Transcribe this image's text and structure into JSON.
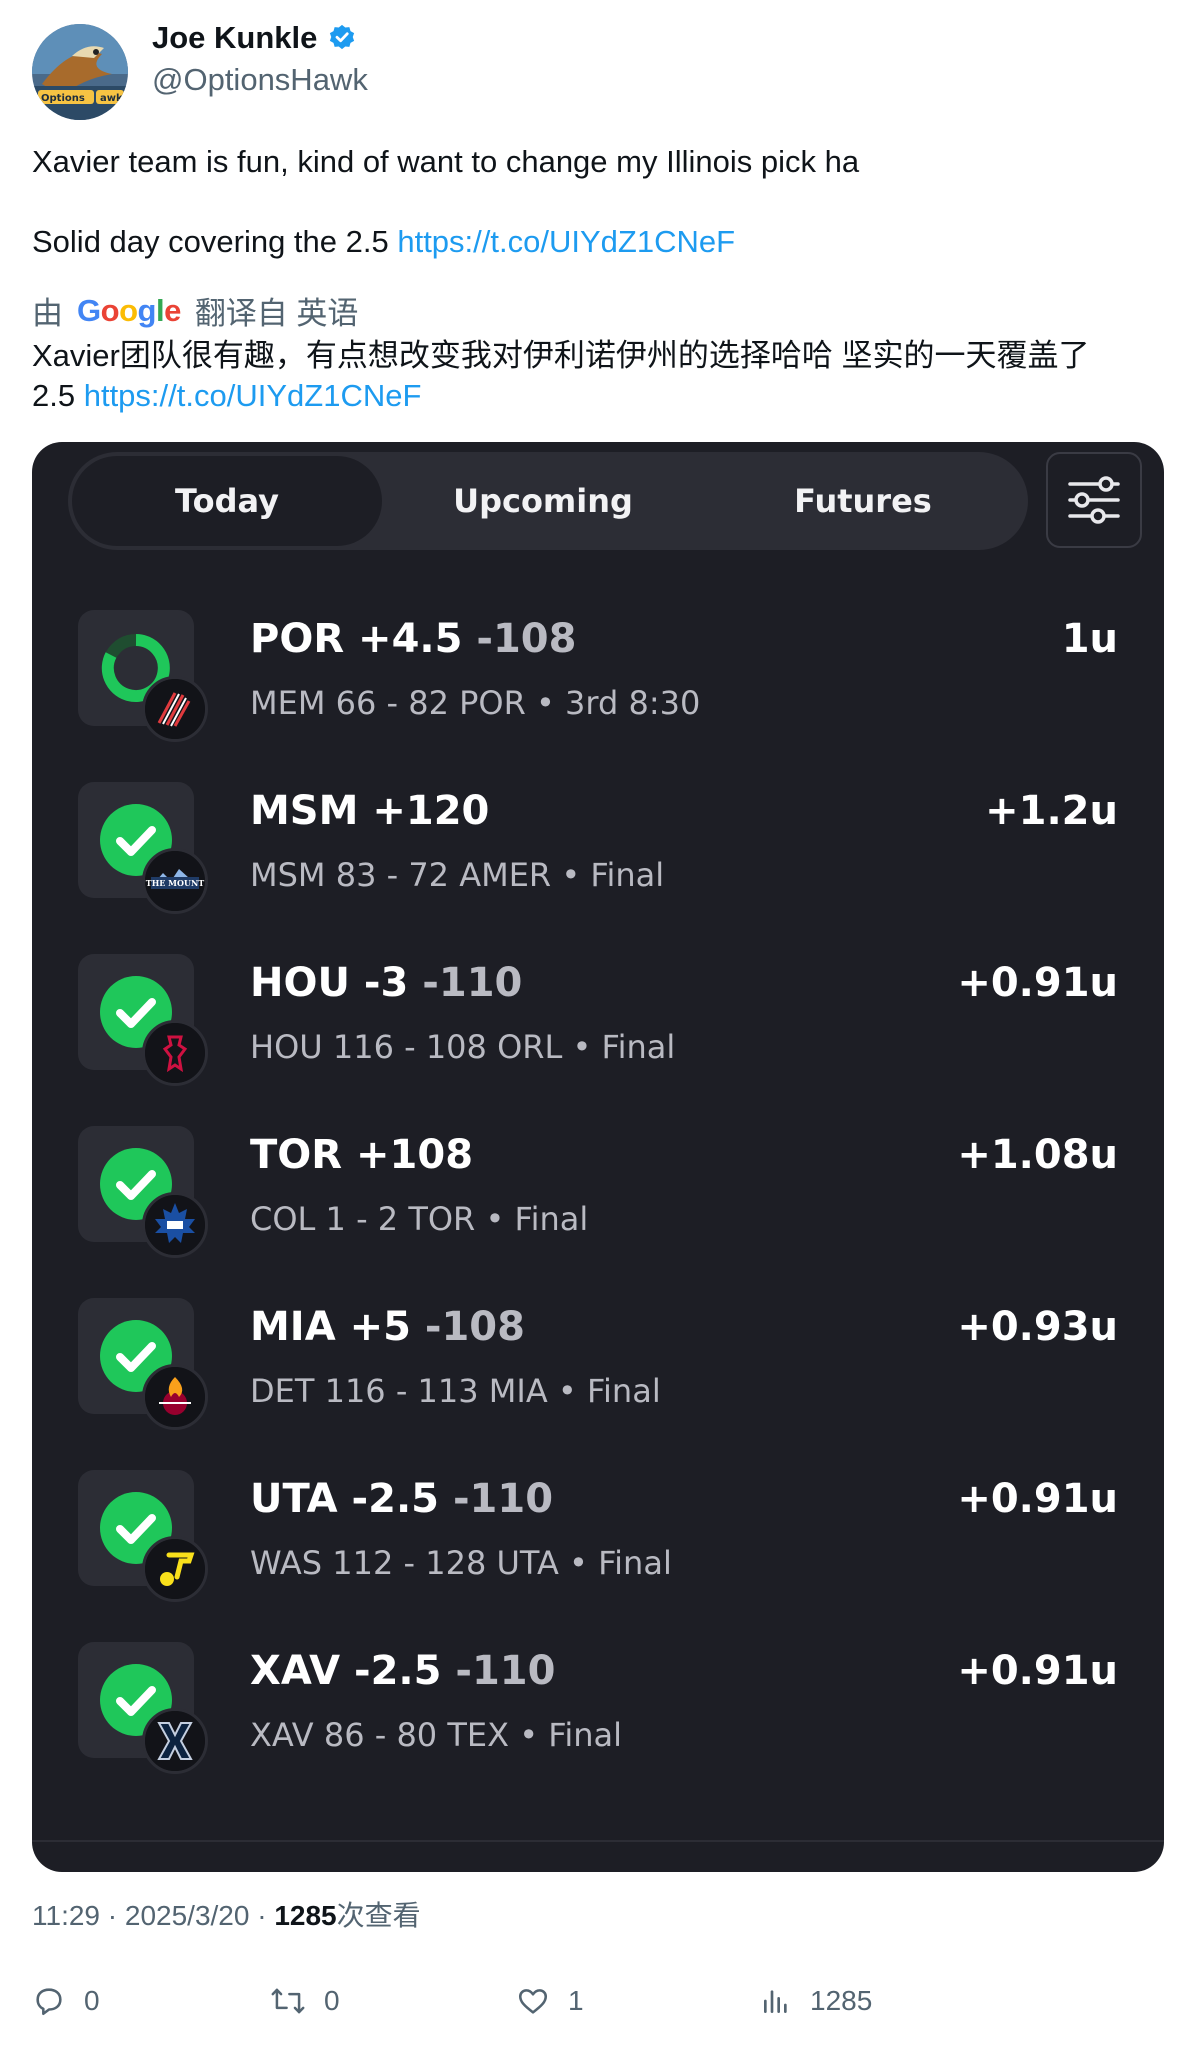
{
  "tweet": {
    "author_name": "Joe Kunkle",
    "author_handle": "@OptionsHawk",
    "avatar_text": "OptionsHawk",
    "line1": "Xavier team is fun, kind of want to change my Illinois pick ha",
    "line2_prefix": "Solid day covering the 2.5 ",
    "link": "https://t.co/UIYdZ1CNeF",
    "translate_by": "由",
    "translate_provider": "Google",
    "translate_from": "翻译自 英语",
    "translated_line1": "Xavier团队很有趣，有点想改变我对伊利诺伊州的选择哈哈 坚实的一天覆盖了",
    "translated_line2_prefix": "2.5 ",
    "timestamp_prefix": "11:29 · 2025/3/20 · ",
    "views_count": "1285",
    "views_suffix": "次查看"
  },
  "actions": {
    "replies": "0",
    "retweets": "0",
    "likes": "1",
    "views": "1285"
  },
  "app": {
    "tabs": [
      {
        "label": "Today",
        "active": true
      },
      {
        "label": "Upcoming",
        "active": false
      },
      {
        "label": "Futures",
        "active": false
      }
    ],
    "bets": [
      {
        "pick": "POR +4.5",
        "odds": " -108",
        "score": "MEM 66 - 82 POR • 3rd 8:30",
        "units": "1u",
        "status": "live",
        "team_icon": "blazers-icon"
      },
      {
        "pick": "MSM +120",
        "odds": "",
        "score": "MSM 83 - 72 AMER • Final",
        "units": "+1.2u",
        "status": "win",
        "team_icon": "mount-icon",
        "badge_text": "THE MOUNT"
      },
      {
        "pick": "HOU -3",
        "odds": " -110",
        "score": "HOU 116 - 108 ORL • Final",
        "units": "+0.91u",
        "status": "win",
        "team_icon": "rockets-icon"
      },
      {
        "pick": "TOR +108",
        "odds": "",
        "score": "COL 1 - 2 TOR • Final",
        "units": "+1.08u",
        "status": "win",
        "team_icon": "maple-leafs-icon"
      },
      {
        "pick": "MIA +5",
        "odds": " -108",
        "score": "DET 116 - 113 MIA • Final",
        "units": "+0.93u",
        "status": "win",
        "team_icon": "heat-icon"
      },
      {
        "pick": "UTA -2.5",
        "odds": " -110",
        "score": "WAS 112 - 128 UTA • Final",
        "units": "+0.91u",
        "status": "win",
        "team_icon": "jazz-icon"
      },
      {
        "pick": "XAV -2.5",
        "odds": " -110",
        "score": "XAV 86 - 80 TEX • Final",
        "units": "+0.91u",
        "status": "win",
        "team_icon": "xavier-icon"
      }
    ]
  },
  "colors": {
    "link": "#1d9bf0",
    "win_green": "#1fc75a",
    "app_bg": "#1d1e25",
    "verified": "#1d9bf0"
  }
}
